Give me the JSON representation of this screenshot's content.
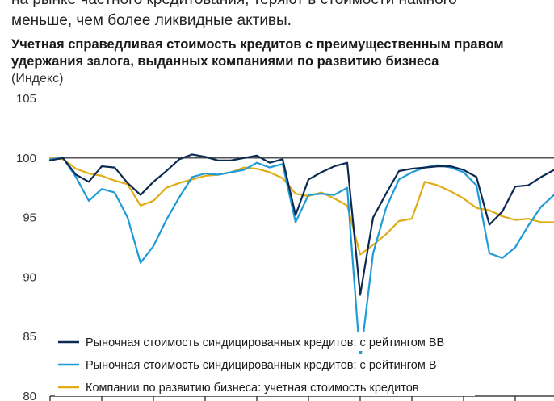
{
  "intro": {
    "line1": "на рынке частного кредитования, теряют в стоимости намного",
    "line2": "меньше, чем более ликвидные активы."
  },
  "chart_data": {
    "type": "line",
    "title_line1": "Учетная справедливая стоимость кредитов с преимущественным правом",
    "title_line2": "удержания залога, выданных компаниями по развитию бизнеса",
    "unit": "(Индекс)",
    "ylim": [
      80,
      105
    ],
    "yticks": [
      {
        "value": 105,
        "label": "105"
      },
      {
        "value": 100,
        "label": "100"
      },
      {
        "value": 95,
        "label": "95"
      },
      {
        "value": 90,
        "label": "90"
      },
      {
        "value": 85,
        "label": "85"
      },
      {
        "value": 80,
        "label": "80"
      }
    ],
    "reference_value": 100,
    "grid": false,
    "legend_position": "bottom-left",
    "series": [
      {
        "name": "Рыночная стоимость синдицированных кредитов: с рейтингом BB",
        "color": "#0b2a52",
        "values": [
          99.8,
          100.0,
          98.6,
          98.0,
          99.3,
          99.2,
          97.9,
          96.9,
          98.0,
          98.9,
          99.9,
          100.3,
          100.1,
          99.8,
          99.8,
          100.0,
          100.2,
          99.6,
          99.9,
          95.2,
          98.2,
          98.8,
          99.3,
          99.6,
          88.5,
          95.0,
          97.0,
          98.9,
          99.1,
          99.2,
          99.3,
          99.3,
          99.0,
          98.4,
          94.4,
          95.5,
          97.6,
          97.7,
          98.4,
          99.0
        ]
      },
      {
        "name": "Рыночная стоимость синдицированных кредитов: с рейтингом B",
        "color": "#1e9bd7",
        "values": [
          99.9,
          100.0,
          98.4,
          96.4,
          97.4,
          97.1,
          95.0,
          91.2,
          92.6,
          94.8,
          96.7,
          98.4,
          98.7,
          98.6,
          98.8,
          99.0,
          99.6,
          99.2,
          99.5,
          94.6,
          96.9,
          97.0,
          96.9,
          97.5,
          83.0,
          92.0,
          95.8,
          98.2,
          98.8,
          99.2,
          99.4,
          99.2,
          98.8,
          97.7,
          92.0,
          91.6,
          92.5,
          94.3,
          95.9,
          96.9
        ]
      },
      {
        "name": "Компании по развитию бизнеса: учетная стоимость кредитов",
        "color": "#e0ac16",
        "values": [
          100.0,
          99.9,
          99.1,
          98.7,
          98.5,
          98.1,
          97.8,
          96.0,
          96.4,
          97.5,
          97.9,
          98.2,
          98.5,
          98.6,
          98.8,
          99.2,
          99.1,
          98.8,
          98.3,
          97.0,
          96.8,
          97.1,
          96.6,
          96.0,
          91.9,
          92.7,
          93.6,
          94.7,
          94.9,
          98.0,
          97.7,
          97.2,
          96.6,
          95.8,
          95.6,
          95.1,
          94.8,
          94.9,
          94.6,
          94.6
        ]
      }
    ]
  },
  "colors": {
    "reference_line": "#1a1a1a",
    "axis": "#1a1a1a"
  }
}
